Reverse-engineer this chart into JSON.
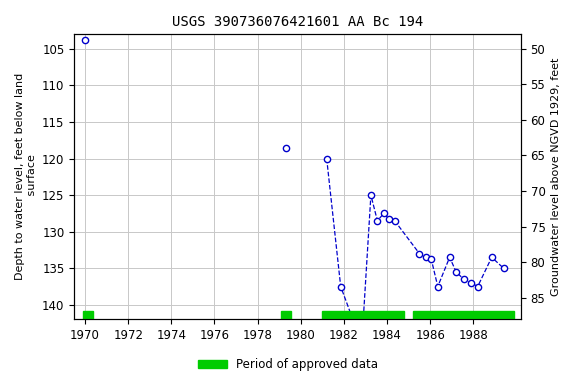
{
  "title": "USGS 390736076421601 AA Bc 194",
  "ylabel_left": "Depth to water level, feet below land\n surface",
  "ylabel_right": "Groundwater level above NGVD 1929, feet",
  "ylim_left": [
    103,
    142
  ],
  "ylim_right": [
    88,
    48
  ],
  "xlim": [
    1969.5,
    1990.2
  ],
  "xticks": [
    1970,
    1972,
    1974,
    1976,
    1978,
    1980,
    1982,
    1984,
    1986,
    1988
  ],
  "yticks_left": [
    105,
    110,
    115,
    120,
    125,
    130,
    135,
    140
  ],
  "yticks_right": [
    85,
    80,
    75,
    70,
    65,
    60,
    55,
    50
  ],
  "segments": [
    {
      "x": [
        1970.0
      ],
      "y": [
        103.8
      ]
    },
    {
      "x": [
        1979.3
      ],
      "y": [
        118.5
      ]
    },
    {
      "x": [
        1981.2,
        1981.85,
        1982.35,
        1982.9,
        1983.25,
        1983.55,
        1983.85,
        1984.1,
        1984.35,
        1985.5,
        1985.8,
        1986.05,
        1986.35,
        1986.9,
        1987.2,
        1987.55,
        1987.9,
        1988.2,
        1988.85,
        1989.4
      ],
      "y": [
        120.0,
        137.5,
        141.5,
        141.8,
        125.0,
        128.5,
        127.5,
        128.3,
        128.5,
        133.0,
        133.5,
        133.8,
        137.5,
        133.5,
        135.5,
        136.5,
        137.0,
        137.5,
        133.5,
        135.0
      ]
    }
  ],
  "line_color": "#0000cc",
  "marker_color": "#0000cc",
  "marker_face": "#ffffff",
  "background": "#ffffff",
  "grid_color": "#c8c8c8",
  "approved_bars": [
    {
      "x_start": 1969.9,
      "x_end": 1970.35
    },
    {
      "x_start": 1979.1,
      "x_end": 1979.55
    },
    {
      "x_start": 1981.0,
      "x_end": 1984.8
    },
    {
      "x_start": 1985.2,
      "x_end": 1989.9
    }
  ],
  "bar_color": "#00cc00",
  "legend_label": "Period of approved data",
  "title_fontsize": 10,
  "axis_fontsize": 8,
  "tick_fontsize": 8.5
}
